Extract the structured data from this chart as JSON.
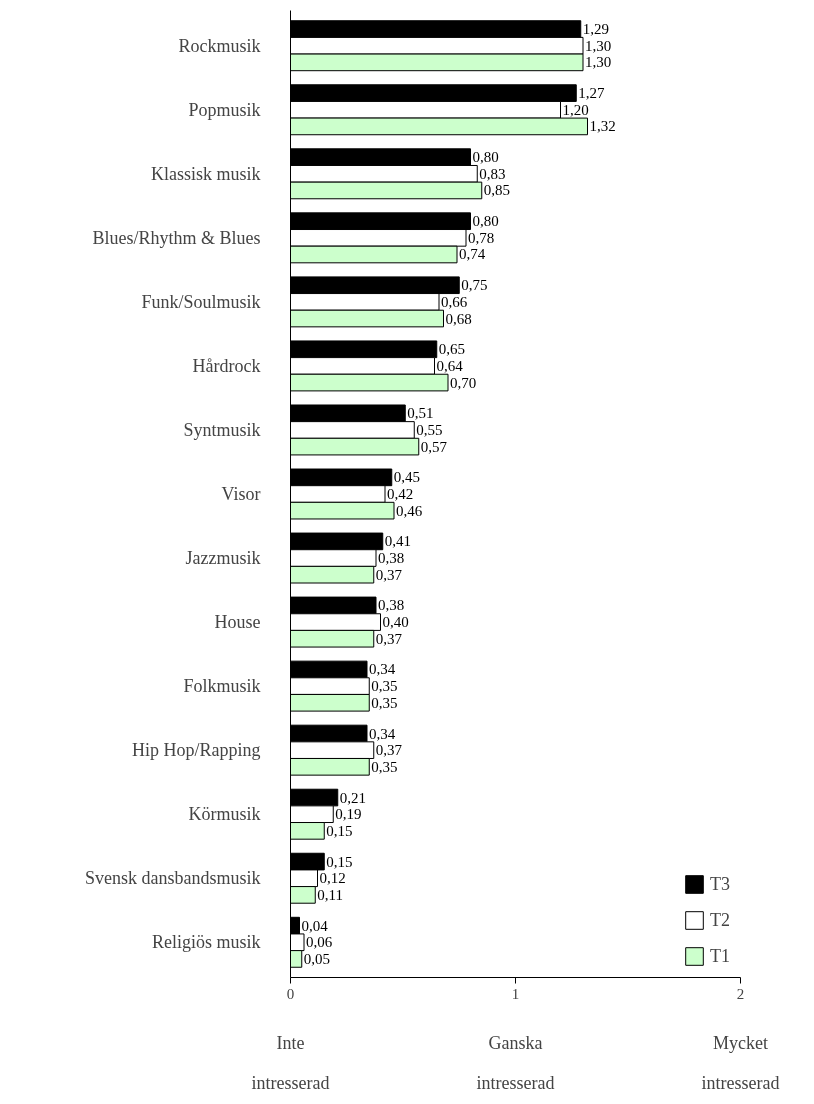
{
  "chart_data": {
    "type": "bar",
    "orientation": "horizontal",
    "categories": [
      "Rockmusik",
      "Popmusik",
      "Klassisk musik",
      "Blues/Rhythm & Blues",
      "Funk/Soulmusik",
      "Hårdrock",
      "Syntmusik",
      "Visor",
      "Jazzmusik",
      "House",
      "Folkmusik",
      "Hip Hop/Rapping",
      "Körmusik",
      "Svensk dansbandsmusik",
      "Religiös musik"
    ],
    "series": [
      {
        "name": "T3",
        "color": "#000000",
        "values": [
          1.29,
          1.27,
          0.8,
          0.8,
          0.75,
          0.65,
          0.51,
          0.45,
          0.41,
          0.38,
          0.34,
          0.34,
          0.21,
          0.15,
          0.04
        ],
        "value_labels": [
          "1,29",
          "1,27",
          "0,80",
          "0,80",
          "0,75",
          "0,65",
          "0,51",
          "0,45",
          "0,41",
          "0,38",
          "0,34",
          "0,34",
          "0,21",
          "0,15",
          "0,04"
        ]
      },
      {
        "name": "T2",
        "color": "#ffffff",
        "values": [
          1.3,
          1.2,
          0.83,
          0.78,
          0.66,
          0.64,
          0.55,
          0.42,
          0.38,
          0.4,
          0.35,
          0.37,
          0.19,
          0.12,
          0.06
        ],
        "value_labels": [
          "1,30",
          "1,20",
          "0,83",
          "0,78",
          "0,66",
          "0,64",
          "0,55",
          "0,42",
          "0,38",
          "0,40",
          "0,35",
          "0,37",
          "0,19",
          "0,12",
          "0,06"
        ]
      },
      {
        "name": "T1",
        "color": "#ccffcc",
        "values": [
          1.3,
          1.32,
          0.85,
          0.74,
          0.68,
          0.7,
          0.57,
          0.46,
          0.37,
          0.37,
          0.35,
          0.35,
          0.15,
          0.11,
          0.05
        ],
        "value_labels": [
          "1,30",
          "1,32",
          "0,85",
          "0,74",
          "0,68",
          "0,70",
          "0,57",
          "0,46",
          "0,37",
          "0,37",
          "0,35",
          "0,35",
          "0,15",
          "0,11",
          "0,05"
        ]
      }
    ],
    "xlim": [
      0,
      2
    ],
    "xticks": [
      0,
      1,
      2
    ],
    "legend": "bottom right",
    "grid": false,
    "annotations": [
      "Inte\nintresserad",
      "Ganska\nintresserad",
      "Mycket\nintresserad"
    ]
  }
}
